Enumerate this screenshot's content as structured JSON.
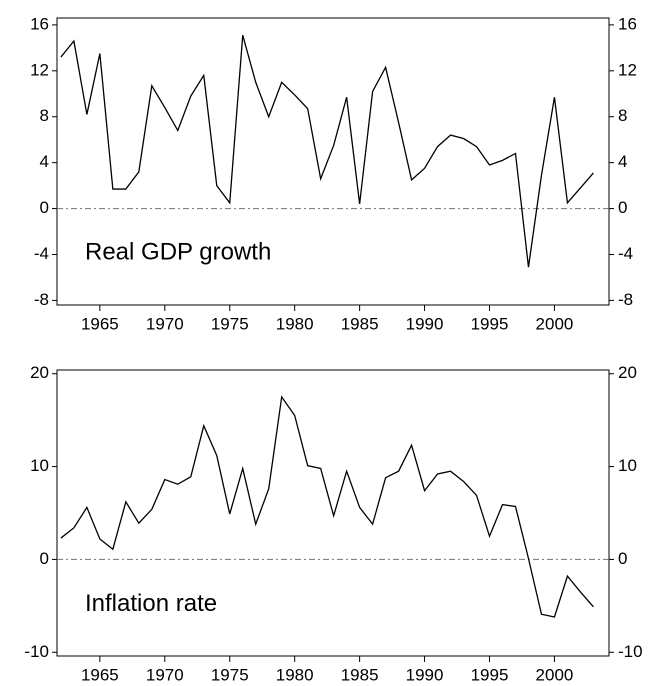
{
  "chart_data": [
    {
      "type": "line",
      "annotation": "Real GDP growth",
      "x": [
        1962,
        1963,
        1964,
        1965,
        1966,
        1967,
        1968,
        1969,
        1970,
        1971,
        1972,
        1973,
        1974,
        1975,
        1976,
        1977,
        1978,
        1979,
        1980,
        1981,
        1982,
        1983,
        1984,
        1985,
        1986,
        1987,
        1988,
        1989,
        1990,
        1991,
        1992,
        1993,
        1994,
        1995,
        1996,
        1997,
        1998,
        1999,
        2000,
        2001,
        2002,
        2003
      ],
      "values": [
        13.2,
        14.6,
        8.2,
        13.5,
        1.7,
        1.7,
        3.2,
        10.7,
        8.8,
        6.8,
        9.8,
        11.6,
        2.0,
        0.5,
        15.1,
        11.0,
        8.0,
        11.0,
        9.9,
        8.7,
        2.6,
        5.5,
        9.7,
        0.4,
        10.2,
        12.3,
        7.5,
        2.5,
        3.5,
        5.4,
        6.4,
        6.1,
        5.4,
        3.8,
        4.2,
        4.8,
        -5.1,
        2.9,
        9.7,
        0.5,
        1.8,
        3.1
      ],
      "color": "#000000",
      "xlim": [
        1961.7,
        2004.2
      ],
      "xticks": [
        1965,
        1970,
        1975,
        1980,
        1985,
        1990,
        1995,
        2000
      ],
      "ylim": [
        -8.4,
        16.6
      ],
      "yticks": [
        -8,
        -4,
        0,
        4,
        8,
        12,
        16
      ],
      "mirror_y_axis": true,
      "zero_line": true
    },
    {
      "type": "line",
      "annotation": "Inflation rate",
      "x": [
        1962,
        1963,
        1964,
        1965,
        1966,
        1967,
        1968,
        1969,
        1970,
        1971,
        1972,
        1973,
        1974,
        1975,
        1976,
        1977,
        1978,
        1979,
        1980,
        1981,
        1982,
        1983,
        1984,
        1985,
        1986,
        1987,
        1988,
        1989,
        1990,
        1991,
        1992,
        1993,
        1994,
        1995,
        1996,
        1997,
        1998,
        1999,
        2000,
        2001,
        2002,
        2003
      ],
      "values": [
        2.3,
        3.4,
        5.6,
        2.2,
        1.1,
        6.2,
        3.9,
        5.4,
        8.6,
        8.1,
        8.9,
        14.4,
        11.2,
        4.9,
        9.8,
        3.8,
        7.6,
        17.5,
        15.5,
        10.1,
        9.8,
        4.7,
        9.5,
        5.6,
        3.8,
        8.8,
        9.5,
        12.3,
        7.4,
        9.2,
        9.5,
        8.4,
        6.9,
        2.5,
        5.9,
        5.7,
        0.1,
        -5.9,
        -6.2,
        -1.8,
        -3.5,
        -5.1
      ],
      "color": "#000000",
      "xlim": [
        1961.7,
        2004.2
      ],
      "xticks": [
        1965,
        1970,
        1975,
        1980,
        1985,
        1990,
        1995,
        2000
      ],
      "ylim": [
        -10.4,
        20.4
      ],
      "yticks": [
        -10,
        0,
        10,
        20
      ],
      "mirror_y_axis": true,
      "zero_line": true
    }
  ]
}
